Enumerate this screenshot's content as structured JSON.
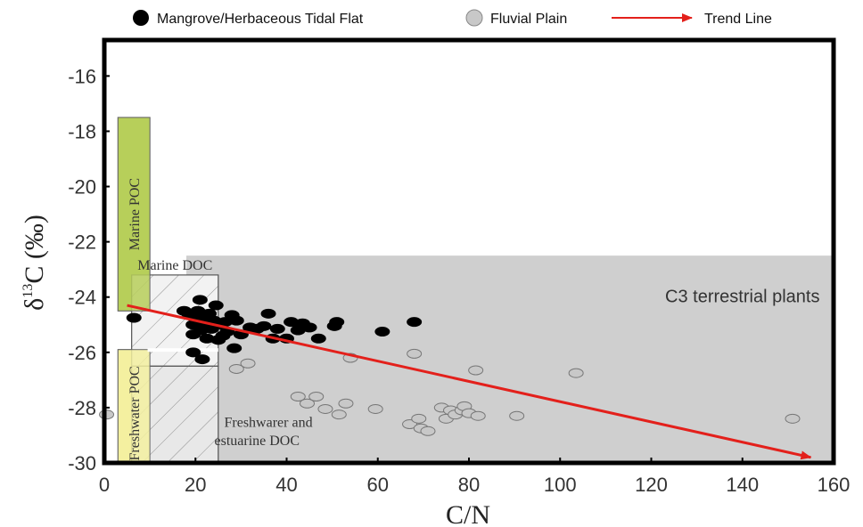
{
  "chart_data": {
    "type": "scatter",
    "xlabel": "C/N",
    "ylabel_main": "δ",
    "ylabel_sup": "13",
    "ylabel_rest": "C (‰)",
    "xlim": [
      0,
      160
    ],
    "ylim": [
      -30,
      -14.7
    ],
    "x_ticks": [
      0,
      20,
      40,
      60,
      80,
      100,
      120,
      140,
      160
    ],
    "y_ticks": [
      -16,
      -18,
      -20,
      -22,
      -24,
      -26,
      -28,
      -30
    ],
    "legend": {
      "placement": "top",
      "entries": [
        "Mangrove/Herbaceous Tidal Flat",
        "Fluvial Plain",
        "Trend Line"
      ]
    },
    "regions": [
      {
        "label": "Marine POC",
        "x": [
          3,
          10
        ],
        "y": [
          -24.5,
          -17.5
        ],
        "color": "#b7cf5a"
      },
      {
        "label": "Marine DOC",
        "x": [
          6,
          25
        ],
        "y": [
          -26.5,
          -23.2
        ],
        "color": "#f2f2f2"
      },
      {
        "label": "C3 terrestrial plants",
        "x": [
          18,
          160
        ],
        "y": [
          -30,
          -22.5
        ],
        "color": "#cfcfcf"
      },
      {
        "label": "Freshwater POC",
        "x": [
          3,
          10
        ],
        "y": [
          -30,
          -25.9
        ],
        "color": "#f3f0a0"
      },
      {
        "label_line1": "Freshwarer and",
        "label_line2": "estuarine DOC",
        "x": [
          6,
          25
        ],
        "y": [
          -30,
          -26.5
        ],
        "color": "#e8e8e8"
      }
    ],
    "series": [
      {
        "name": "Mangrove/Herbaceous Tidal Flat",
        "color": "#000000",
        "points": [
          [
            6.5,
            -24.75
          ],
          [
            17.5,
            -24.5
          ],
          [
            18.5,
            -24.6
          ],
          [
            19.5,
            -25.0
          ],
          [
            19.5,
            -25.35
          ],
          [
            20.0,
            -24.75
          ],
          [
            20.5,
            -24.5
          ],
          [
            21.0,
            -24.1
          ],
          [
            21.2,
            -25.2
          ],
          [
            21.5,
            -24.7
          ],
          [
            22.0,
            -24.95
          ],
          [
            22.5,
            -25.5
          ],
          [
            23.0,
            -24.6
          ],
          [
            23.5,
            -25.15
          ],
          [
            24.0,
            -24.85
          ],
          [
            24.5,
            -24.3
          ],
          [
            25.0,
            -25.55
          ],
          [
            25.5,
            -25.0
          ],
          [
            26.0,
            -25.4
          ],
          [
            26.5,
            -24.9
          ],
          [
            27.0,
            -25.25
          ],
          [
            28.0,
            -24.65
          ],
          [
            28.5,
            -25.85
          ],
          [
            29.0,
            -24.85
          ],
          [
            30.0,
            -25.35
          ],
          [
            32.0,
            -25.1
          ],
          [
            33.5,
            -25.15
          ],
          [
            35.0,
            -25.05
          ],
          [
            36.0,
            -24.6
          ],
          [
            37.0,
            -25.5
          ],
          [
            38.0,
            -25.15
          ],
          [
            40.0,
            -25.5
          ],
          [
            41.0,
            -24.9
          ],
          [
            42.5,
            -25.2
          ],
          [
            43.5,
            -24.95
          ],
          [
            45.0,
            -25.1
          ],
          [
            47.0,
            -25.5
          ],
          [
            50.5,
            -25.05
          ],
          [
            51.0,
            -24.9
          ],
          [
            61.0,
            -25.25
          ],
          [
            68.0,
            -24.9
          ],
          [
            19.5,
            -26.0
          ],
          [
            21.5,
            -26.25
          ]
        ]
      },
      {
        "name": "Fluvial Plain",
        "color": "#c8c8c8",
        "points": [
          [
            0.5,
            -28.25
          ],
          [
            29.0,
            -26.6
          ],
          [
            31.5,
            -26.4
          ],
          [
            42.5,
            -27.6
          ],
          [
            44.5,
            -27.85
          ],
          [
            46.5,
            -27.6
          ],
          [
            48.5,
            -28.05
          ],
          [
            51.5,
            -28.25
          ],
          [
            53.0,
            -27.85
          ],
          [
            54.0,
            -26.2
          ],
          [
            59.5,
            -28.05
          ],
          [
            67.0,
            -28.6
          ],
          [
            68.0,
            -26.05
          ],
          [
            69.0,
            -28.4
          ],
          [
            69.5,
            -28.75
          ],
          [
            71.0,
            -28.85
          ],
          [
            74.0,
            -28.0
          ],
          [
            75.0,
            -28.4
          ],
          [
            76.0,
            -28.1
          ],
          [
            77.0,
            -28.25
          ],
          [
            78.5,
            -28.1
          ],
          [
            79.0,
            -27.95
          ],
          [
            80.0,
            -28.2
          ],
          [
            81.5,
            -26.65
          ],
          [
            82.0,
            -28.3
          ],
          [
            90.5,
            -28.3
          ],
          [
            103.5,
            -26.75
          ],
          [
            151.0,
            -28.4
          ]
        ]
      }
    ],
    "trend_line": {
      "name": "Trend Line",
      "from": [
        5,
        -24.3
      ],
      "to": [
        155,
        -29.8
      ],
      "color": "#e3201b"
    }
  }
}
